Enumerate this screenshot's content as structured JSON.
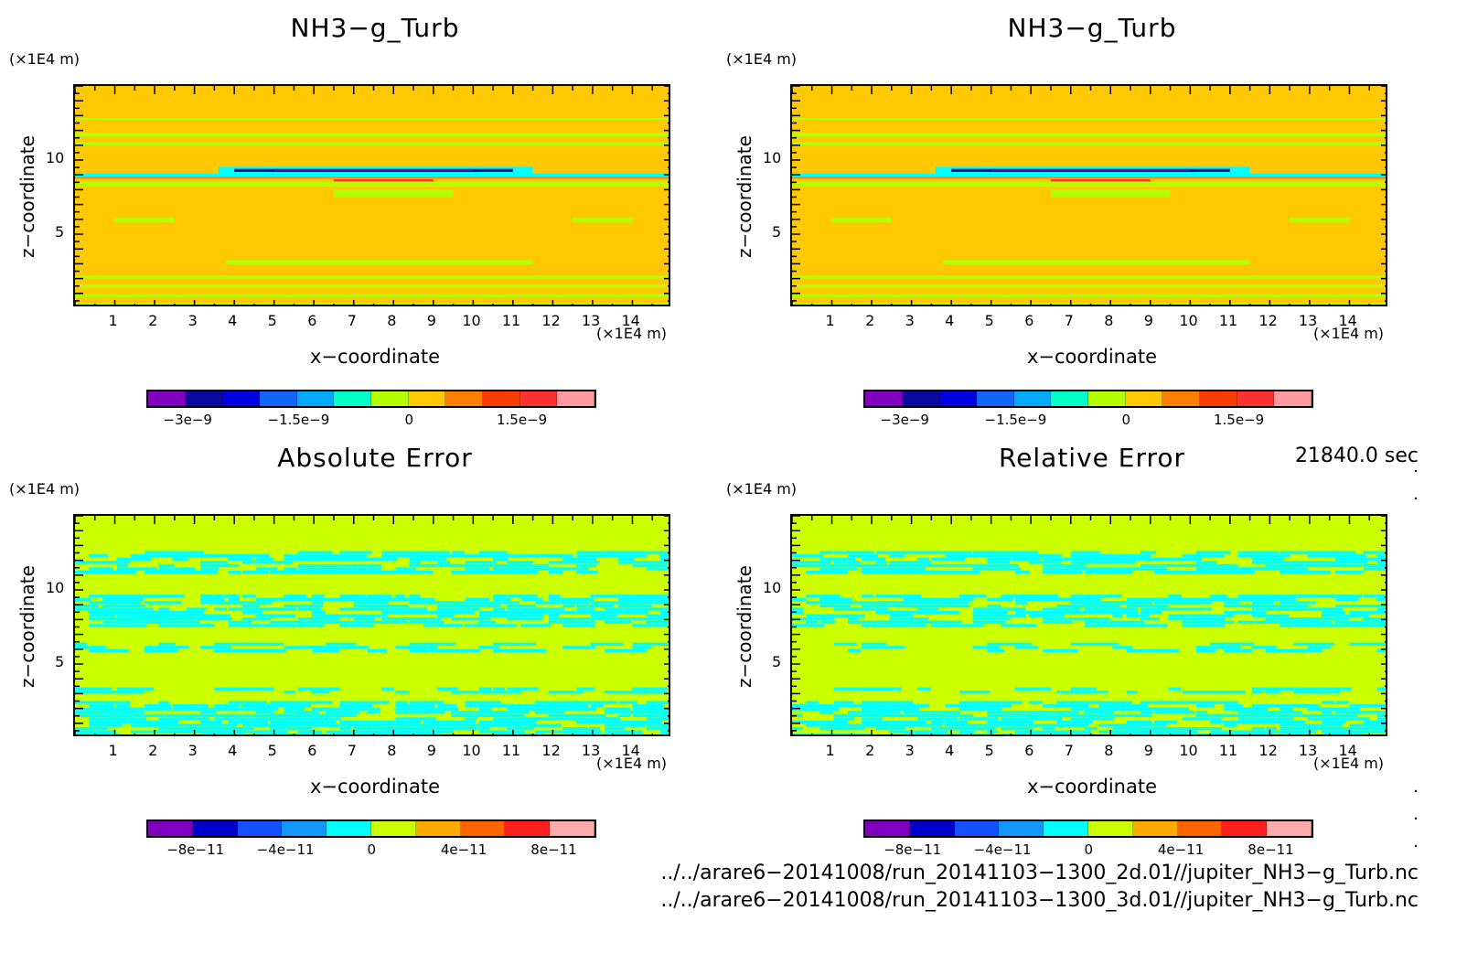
{
  "colors": {
    "sat_bg": "#ffc800",
    "sat_mid": "#b4ff00",
    "err_bg": "#ccff00",
    "cyan": "#00ffff",
    "blue_dark": "#0a0aa0",
    "purple": "#7f00bf",
    "red": "#ff3030",
    "orange": "#ff8000"
  },
  "units": {
    "y": "(×1E4 m)",
    "x": "(×1E4 m)"
  },
  "axes": {
    "xlabel": "x−coordinate",
    "ylabel": "z−coordinate",
    "xticks": [
      "1",
      "2",
      "3",
      "4",
      "5",
      "6",
      "7",
      "8",
      "9",
      "10",
      "11",
      "12",
      "13",
      "14"
    ],
    "yticks": [
      "5",
      "10"
    ]
  },
  "panels": [
    {
      "title": "NH3−g_Turb",
      "colorbar_labels": [
        "−3e−9",
        "−1.5e−9",
        "0",
        "1.5e−9"
      ]
    },
    {
      "title": "NH3−g_Turb",
      "colorbar_labels": [
        "−3e−9",
        "−1.5e−9",
        "0",
        "1.5e−9"
      ]
    },
    {
      "title": "Absolute Error",
      "colorbar_labels": [
        "−8e−11",
        "−4e−11",
        "0",
        "4e−11",
        "8e−11"
      ]
    },
    {
      "title": "Relative Error",
      "colorbar_labels": [
        "−8e−11",
        "−4e−11",
        "0",
        "4e−11",
        "8e−11"
      ]
    }
  ],
  "footer": {
    "time": "21840.0 sec",
    "path1": "../../arare6−20141008/run_20141103−1300_2d.01//jupiter_NH3−g_Turb.nc",
    "path2": "../../arare6−20141008/run_20141103−1300_3d.01//jupiter_NH3−g_Turb.nc"
  },
  "chart_data": [
    {
      "type": "heatmap",
      "title": "NH3−g_Turb",
      "xlabel": "x−coordinate",
      "ylabel": "z−coordinate",
      "xlim": [
        0,
        15
      ],
      "ylim": [
        0,
        15
      ],
      "unit": "(×1E4 m)",
      "colorbar": {
        "ticks": [
          -3e-09,
          -1.5e-09,
          0,
          1.5e-09
        ],
        "colors": [
          "#7f00bf",
          "#0a0aa0",
          "#0000e0",
          "#1464ff",
          "#00aaff",
          "#00ffc8",
          "#b4ff00",
          "#ffc800",
          "#ff8000",
          "#ff3c00",
          "#ff3030",
          "#ff9aa0"
        ]
      }
    },
    {
      "type": "heatmap",
      "title": "NH3−g_Turb",
      "xlabel": "x−coordinate",
      "ylabel": "z−coordinate",
      "xlim": [
        0,
        15
      ],
      "ylim": [
        0,
        15
      ],
      "unit": "(×1E4 m)",
      "colorbar": {
        "ticks": [
          -3e-09,
          -1.5e-09,
          0,
          1.5e-09
        ],
        "colors": [
          "#7f00bf",
          "#0a0aa0",
          "#0000e0",
          "#1464ff",
          "#00aaff",
          "#00ffc8",
          "#b4ff00",
          "#ffc800",
          "#ff8000",
          "#ff3c00",
          "#ff3030",
          "#ff9aa0"
        ]
      }
    },
    {
      "type": "heatmap",
      "title": "Absolute Error",
      "xlabel": "x−coordinate",
      "ylabel": "z−coordinate",
      "xlim": [
        0,
        15
      ],
      "ylim": [
        0,
        15
      ],
      "unit": "(×1E4 m)",
      "colorbar": {
        "ticks": [
          -8e-11,
          -4e-11,
          0,
          4e-11,
          8e-11
        ],
        "colors": [
          "#7f00bf",
          "#0000c8",
          "#1450ff",
          "#1496ff",
          "#00ffff",
          "#ccff00",
          "#ffaa00",
          "#ff6400",
          "#ff1e1e",
          "#ffaaaa"
        ]
      }
    },
    {
      "type": "heatmap",
      "title": "Relative Error",
      "xlabel": "x−coordinate",
      "ylabel": "z−coordinate",
      "xlim": [
        0,
        15
      ],
      "ylim": [
        0,
        15
      ],
      "unit": "(×1E4 m)",
      "colorbar": {
        "ticks": [
          -8e-11,
          -4e-11,
          0,
          4e-11,
          8e-11
        ],
        "colors": [
          "#7f00bf",
          "#0000c8",
          "#1450ff",
          "#1496ff",
          "#00ffff",
          "#ccff00",
          "#ffaa00",
          "#ff6400",
          "#ff1e1e",
          "#ffaaaa"
        ]
      }
    }
  ]
}
